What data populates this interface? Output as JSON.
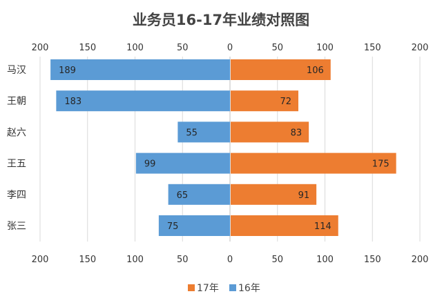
{
  "chart_data": {
    "type": "bar",
    "orientation": "horizontal",
    "layout": "butterfly",
    "title": "业务员16-17年业绩对照图",
    "categories": [
      "马汉",
      "王朝",
      "赵六",
      "王五",
      "李四",
      "张三"
    ],
    "series": [
      {
        "name": "16年",
        "side": "left",
        "color": "#5b9bd5",
        "values": [
          189,
          183,
          55,
          99,
          65,
          75
        ]
      },
      {
        "name": "17年",
        "side": "right",
        "color": "#ed7d31",
        "values": [
          106,
          72,
          83,
          175,
          91,
          114
        ]
      }
    ],
    "xlim": [
      -200,
      200
    ],
    "tick_values": [
      -200,
      -150,
      -100,
      -50,
      0,
      50,
      100,
      150,
      200
    ],
    "tick_labels": [
      "200",
      "150",
      "100",
      "50",
      "0",
      "50",
      "100",
      "150",
      "200"
    ],
    "tick_positions": [
      "top",
      "bottom"
    ],
    "grid": true,
    "data_labels": true,
    "legend": {
      "position": "bottom",
      "order": [
        "17年",
        "16年"
      ]
    }
  }
}
